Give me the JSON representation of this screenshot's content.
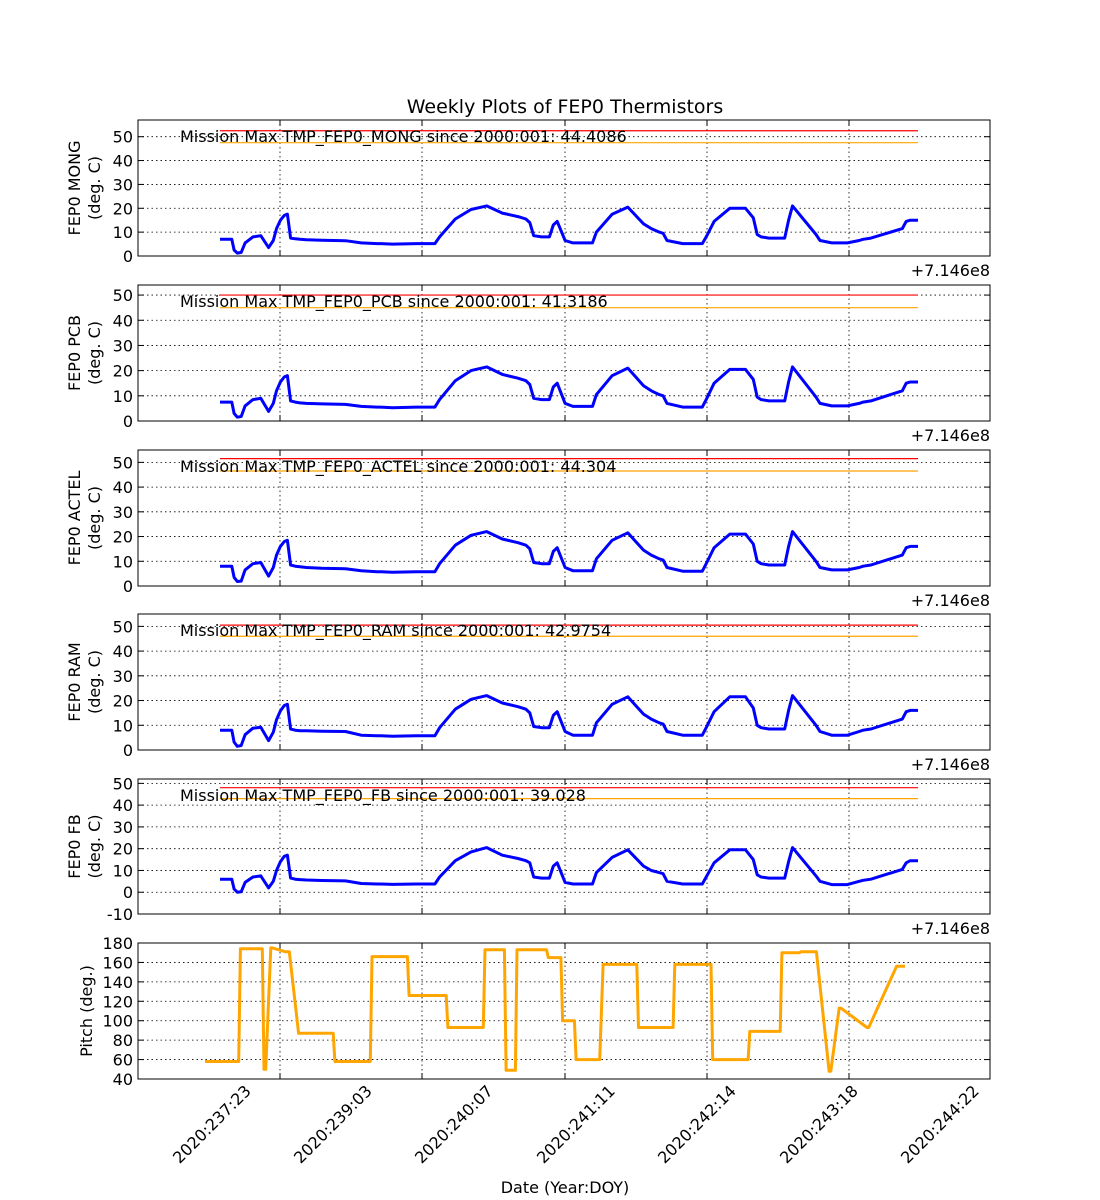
{
  "figure": {
    "title": "Weekly Plots of FEP0 Thermistors",
    "xlabel": "Date (Year:DOY)",
    "offset_label": "+7.146e8",
    "x_tick_labels": [
      "2020:237:23",
      "2020:239:03",
      "2020:240:07",
      "2020:241:11",
      "2020:242:14",
      "2020:243:18",
      "2020:244:22"
    ]
  },
  "colors": {
    "data": "#0000ff",
    "red_limit": "#ff0000",
    "yellow_limit": "#ffa500",
    "pitch": "#ffa500",
    "grid": "#000000"
  },
  "chart_data": [
    {
      "type": "line",
      "ylabel": [
        "FEP0 MONG",
        "(deg. C)"
      ],
      "annotation": "Mission Max TMP_FEP0_MONG since 2000:001: 44.4086",
      "ylim": [
        0,
        57
      ],
      "yticks": [
        0,
        10,
        20,
        30,
        40,
        50
      ],
      "limits": {
        "red": 52.5,
        "yellow": 47.5
      },
      "series": [
        {
          "x": [
            0.0,
            0.1,
            0.15,
            0.18,
            0.22,
            0.27,
            0.32,
            0.42,
            0.52,
            0.62,
            0.68,
            0.72,
            0.77,
            0.82,
            0.86,
            0.9,
            0.96,
            1.02,
            1.1,
            1.3,
            1.6,
            1.8,
            2.0,
            2.04,
            2.2,
            2.5,
            2.74,
            2.8,
            3.0,
            3.2,
            3.4,
            3.6,
            3.8,
            3.9,
            3.95,
            4.0,
            4.1,
            4.2,
            4.25,
            4.3,
            4.4,
            4.5,
            4.75,
            4.8,
            5.0,
            5.2,
            5.4,
            5.5,
            5.6,
            5.65,
            5.7,
            5.9,
            6.15,
            6.2,
            6.3,
            6.5,
            6.7,
            6.8,
            6.85,
            6.9,
            7.0,
            7.1,
            7.2,
            7.25,
            7.3,
            7.6,
            7.65,
            7.8,
            8.0,
            8.15,
            8.2,
            8.3,
            8.7,
            8.75,
            8.8,
            8.9
          ],
          "y": [
            7.0,
            7.0,
            7.0,
            2.5,
            1.2,
            1.5,
            5.5,
            8.0,
            8.5,
            3.5,
            6.5,
            11.5,
            15.0,
            17.0,
            17.5,
            7.5,
            7.2,
            7.0,
            6.8,
            6.6,
            6.4,
            5.5,
            5.2,
            5.2,
            5.0,
            5.2,
            5.2,
            8.0,
            15.5,
            19.5,
            21.0,
            18.0,
            16.5,
            15.5,
            14.0,
            8.5,
            8.0,
            8.0,
            13.0,
            14.5,
            6.5,
            5.5,
            5.5,
            10.0,
            17.5,
            20.5,
            13.5,
            11.5,
            10.0,
            9.5,
            6.5,
            5.2,
            5.2,
            8.0,
            14.5,
            20.0,
            20.0,
            16.0,
            9.0,
            8.0,
            7.5,
            7.5,
            7.5,
            15.0,
            21.0,
            9.0,
            6.5,
            5.5,
            5.5,
            6.5,
            7.0,
            7.5,
            11.5,
            14.5,
            15.0,
            15.0
          ]
        }
      ]
    },
    {
      "type": "line",
      "ylabel": [
        "FEP0 PCB",
        "(deg. C)"
      ],
      "annotation": "Mission Max TMP_FEP0_PCB since 2000:001: 41.3186",
      "ylim": [
        0,
        54
      ],
      "yticks": [
        0,
        10,
        20,
        30,
        40,
        50
      ],
      "limits": {
        "red": 50,
        "yellow": 45
      },
      "series": [
        {
          "x": [
            0.0,
            0.1,
            0.15,
            0.18,
            0.22,
            0.27,
            0.32,
            0.42,
            0.52,
            0.62,
            0.68,
            0.72,
            0.77,
            0.82,
            0.86,
            0.9,
            0.96,
            1.02,
            1.1,
            1.3,
            1.6,
            1.8,
            2.0,
            2.04,
            2.2,
            2.5,
            2.74,
            2.8,
            3.0,
            3.2,
            3.4,
            3.6,
            3.8,
            3.9,
            3.95,
            4.0,
            4.1,
            4.2,
            4.25,
            4.3,
            4.4,
            4.5,
            4.75,
            4.8,
            5.0,
            5.2,
            5.4,
            5.5,
            5.6,
            5.65,
            5.7,
            5.9,
            6.15,
            6.2,
            6.3,
            6.5,
            6.7,
            6.8,
            6.85,
            6.9,
            7.0,
            7.1,
            7.2,
            7.25,
            7.3,
            7.6,
            7.65,
            7.8,
            8.0,
            8.15,
            8.2,
            8.3,
            8.7,
            8.75,
            8.8,
            8.9
          ],
          "y": [
            7.5,
            7.5,
            7.5,
            3.0,
            1.5,
            1.8,
            6.0,
            8.5,
            9.0,
            3.8,
            7.0,
            12.0,
            15.5,
            17.5,
            18.0,
            8.0,
            7.5,
            7.2,
            7.0,
            6.8,
            6.6,
            5.8,
            5.5,
            5.5,
            5.3,
            5.5,
            5.5,
            8.5,
            16.0,
            20.0,
            21.5,
            18.5,
            17.0,
            16.0,
            14.5,
            9.0,
            8.5,
            8.5,
            13.5,
            15.0,
            7.0,
            5.8,
            5.8,
            10.5,
            18.0,
            21.0,
            14.0,
            12.0,
            10.5,
            10.0,
            7.0,
            5.5,
            5.5,
            8.5,
            15.0,
            20.5,
            20.5,
            16.5,
            9.5,
            8.5,
            8.0,
            8.0,
            8.0,
            15.5,
            21.5,
            9.5,
            7.0,
            6.0,
            6.0,
            7.0,
            7.5,
            8.0,
            12.0,
            15.0,
            15.5,
            15.5
          ]
        }
      ]
    },
    {
      "type": "line",
      "ylabel": [
        "FEP0 ACTEL",
        "(deg. C)"
      ],
      "annotation": "Mission Max TMP_FEP0_ACTEL since 2000:001: 44.304",
      "ylim": [
        0,
        55
      ],
      "yticks": [
        0,
        10,
        20,
        30,
        40,
        50
      ],
      "limits": {
        "red": 51.5,
        "yellow": 46.5
      },
      "series": [
        {
          "x": [
            0.0,
            0.1,
            0.15,
            0.18,
            0.22,
            0.27,
            0.32,
            0.42,
            0.52,
            0.62,
            0.68,
            0.72,
            0.77,
            0.82,
            0.86,
            0.9,
            0.96,
            1.02,
            1.1,
            1.3,
            1.6,
            1.8,
            2.0,
            2.04,
            2.2,
            2.5,
            2.74,
            2.8,
            3.0,
            3.2,
            3.4,
            3.6,
            3.8,
            3.9,
            3.95,
            4.0,
            4.1,
            4.2,
            4.25,
            4.3,
            4.4,
            4.5,
            4.75,
            4.8,
            5.0,
            5.2,
            5.4,
            5.5,
            5.6,
            5.65,
            5.7,
            5.9,
            6.15,
            6.2,
            6.3,
            6.5,
            6.7,
            6.8,
            6.85,
            6.9,
            7.0,
            7.1,
            7.2,
            7.25,
            7.3,
            7.6,
            7.65,
            7.8,
            8.0,
            8.15,
            8.2,
            8.3,
            8.7,
            8.75,
            8.8,
            8.9
          ],
          "y": [
            8.0,
            8.0,
            8.0,
            3.5,
            1.8,
            2.0,
            6.5,
            9.0,
            9.5,
            4.0,
            7.5,
            12.5,
            16.0,
            18.0,
            18.5,
            8.5,
            8.0,
            7.8,
            7.5,
            7.2,
            7.0,
            6.2,
            5.8,
            5.8,
            5.6,
            5.8,
            5.8,
            9.0,
            16.5,
            20.5,
            22.0,
            19.0,
            17.5,
            16.5,
            15.0,
            9.5,
            9.0,
            9.0,
            14.0,
            15.5,
            7.5,
            6.2,
            6.2,
            11.0,
            18.5,
            21.5,
            14.5,
            12.5,
            11.0,
            10.5,
            7.5,
            6.0,
            6.0,
            9.0,
            15.5,
            21.0,
            21.0,
            17.0,
            10.0,
            9.0,
            8.5,
            8.5,
            8.5,
            16.0,
            22.0,
            10.0,
            7.5,
            6.5,
            6.5,
            7.5,
            8.0,
            8.5,
            12.5,
            15.5,
            16.0,
            16.0
          ]
        }
      ]
    },
    {
      "type": "line",
      "ylabel": [
        "FEP0 RAM",
        "(deg. C)"
      ],
      "annotation": "Mission Max TMP_FEP0_RAM since 2000:001: 42.9754",
      "ylim": [
        0,
        55
      ],
      "yticks": [
        0,
        10,
        20,
        30,
        40,
        50
      ],
      "limits": {
        "red": 50.5,
        "yellow": 46
      },
      "series": [
        {
          "x": [
            0.0,
            0.1,
            0.15,
            0.18,
            0.22,
            0.27,
            0.32,
            0.42,
            0.52,
            0.62,
            0.68,
            0.72,
            0.77,
            0.82,
            0.86,
            0.9,
            0.96,
            1.02,
            1.1,
            1.3,
            1.6,
            1.8,
            2.0,
            2.04,
            2.2,
            2.5,
            2.74,
            2.8,
            3.0,
            3.2,
            3.4,
            3.6,
            3.8,
            3.9,
            3.95,
            4.0,
            4.1,
            4.2,
            4.25,
            4.3,
            4.4,
            4.5,
            4.75,
            4.8,
            5.0,
            5.2,
            5.4,
            5.5,
            5.6,
            5.65,
            5.7,
            5.9,
            6.15,
            6.2,
            6.3,
            6.5,
            6.7,
            6.8,
            6.85,
            6.9,
            7.0,
            7.1,
            7.2,
            7.25,
            7.3,
            7.6,
            7.65,
            7.8,
            8.0,
            8.15,
            8.2,
            8.3,
            8.7,
            8.75,
            8.8,
            8.9
          ],
          "y": [
            8.0,
            8.0,
            8.0,
            3.2,
            1.5,
            1.8,
            6.2,
            8.8,
            9.2,
            3.8,
            7.2,
            12.2,
            15.8,
            18.0,
            18.5,
            8.5,
            8.0,
            7.8,
            7.8,
            7.6,
            7.5,
            6.0,
            5.8,
            5.8,
            5.6,
            5.8,
            5.8,
            9.0,
            16.5,
            20.5,
            22.0,
            19.0,
            17.5,
            16.5,
            15.0,
            9.5,
            9.0,
            9.0,
            14.0,
            15.5,
            7.5,
            6.0,
            6.0,
            11.0,
            18.5,
            21.5,
            14.5,
            12.5,
            11.0,
            10.5,
            7.5,
            6.0,
            6.0,
            9.0,
            15.5,
            21.5,
            21.5,
            17.0,
            10.0,
            9.0,
            8.5,
            8.5,
            8.5,
            16.0,
            22.0,
            10.0,
            7.5,
            6.0,
            6.0,
            7.5,
            8.0,
            8.5,
            12.5,
            15.5,
            16.0,
            16.0
          ]
        }
      ]
    },
    {
      "type": "line",
      "ylabel": [
        "FEP0 FB",
        "(deg. C)"
      ],
      "annotation": "Mission Max TMP_FEP0_FB since 2000:001: 39.028",
      "ylim": [
        -10,
        52
      ],
      "yticks": [
        -10,
        0,
        10,
        20,
        30,
        40,
        50
      ],
      "limits": {
        "red": 48,
        "yellow": 43
      },
      "series": [
        {
          "x": [
            0.0,
            0.1,
            0.15,
            0.18,
            0.22,
            0.27,
            0.32,
            0.42,
            0.52,
            0.62,
            0.68,
            0.72,
            0.77,
            0.82,
            0.86,
            0.9,
            0.96,
            1.02,
            1.1,
            1.3,
            1.6,
            1.8,
            2.0,
            2.04,
            2.2,
            2.5,
            2.74,
            2.8,
            3.0,
            3.2,
            3.4,
            3.6,
            3.8,
            3.9,
            3.95,
            4.0,
            4.1,
            4.2,
            4.25,
            4.3,
            4.4,
            4.5,
            4.75,
            4.8,
            5.0,
            5.2,
            5.4,
            5.5,
            5.6,
            5.65,
            5.7,
            5.9,
            6.15,
            6.2,
            6.3,
            6.5,
            6.7,
            6.8,
            6.85,
            6.9,
            7.0,
            7.1,
            7.2,
            7.25,
            7.3,
            7.6,
            7.65,
            7.8,
            8.0,
            8.15,
            8.2,
            8.3,
            8.7,
            8.75,
            8.8,
            8.9
          ],
          "y": [
            6.0,
            6.0,
            6.0,
            1.5,
            0.0,
            0.2,
            4.5,
            7.0,
            7.5,
            2.0,
            5.0,
            10.0,
            14.0,
            16.5,
            17.0,
            6.5,
            6.0,
            5.8,
            5.6,
            5.4,
            5.2,
            4.0,
            3.8,
            3.8,
            3.6,
            3.8,
            3.8,
            7.0,
            14.5,
            18.5,
            20.5,
            17.0,
            15.5,
            14.5,
            13.5,
            7.0,
            6.5,
            6.5,
            12.0,
            13.5,
            4.5,
            3.8,
            3.8,
            9.0,
            16.0,
            19.5,
            12.0,
            10.0,
            9.0,
            8.5,
            5.0,
            3.8,
            3.8,
            7.0,
            13.5,
            19.5,
            19.5,
            15.0,
            8.0,
            7.0,
            6.5,
            6.5,
            6.5,
            14.0,
            20.5,
            7.5,
            5.0,
            3.5,
            3.5,
            5.0,
            5.5,
            6.0,
            10.5,
            13.5,
            14.5,
            14.5
          ]
        }
      ]
    },
    {
      "type": "line",
      "ylabel": [
        "Pitch (deg.)"
      ],
      "annotation": "",
      "ylim": [
        40,
        180
      ],
      "yticks": [
        40,
        60,
        80,
        100,
        120,
        140,
        160,
        180
      ],
      "limits": null,
      "series": [
        {
          "x": [
            0.0,
            0.4,
            0.42,
            0.68,
            0.7,
            0.72,
            0.78,
            0.8,
            0.95,
            1.0,
            1.11,
            1.12,
            1.52,
            1.54,
            1.96,
            1.98,
            2.4,
            2.42,
            2.86,
            2.88,
            3.3,
            3.32,
            3.55,
            3.57,
            3.68,
            3.7,
            4.05,
            4.07,
            4.22,
            4.24,
            4.38,
            4.4,
            4.68,
            4.72,
            5.12,
            5.14,
            5.55,
            5.57,
            6.0,
            6.02,
            6.44,
            6.46,
            6.82,
            6.84,
            7.05,
            7.07,
            7.25,
            7.4,
            7.42,
            7.52,
            7.54,
            7.85,
            7.87,
            8.2,
            8.22,
            8.3
          ],
          "y": [
            58,
            58,
            174,
            174,
            50,
            50,
            175,
            175,
            171,
            171,
            87,
            87,
            87,
            58,
            58,
            166,
            166,
            126,
            126,
            93,
            93,
            173,
            173,
            49,
            49,
            173,
            173,
            165,
            165,
            100,
            100,
            60,
            60,
            158,
            158,
            93,
            93,
            158,
            158,
            60,
            60,
            89,
            89,
            170,
            170,
            171,
            171,
            48,
            48,
            113,
            113,
            93,
            93,
            156,
            156,
            156
          ]
        }
      ]
    }
  ]
}
